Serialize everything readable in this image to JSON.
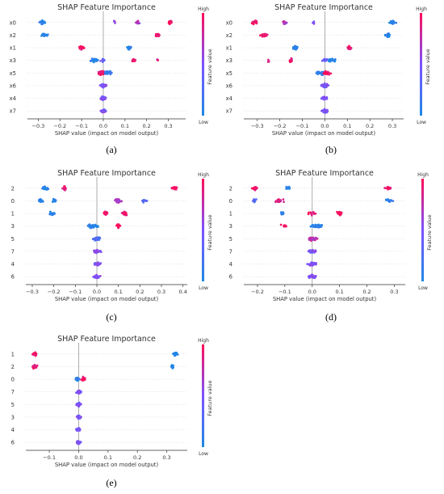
{
  "chart_data": [
    {
      "type": "scatter",
      "subtype": "shap-beeswarm",
      "panel_label": "(a)",
      "title": "SHAP Feature Importance",
      "xlabel": "SHAP value (impact on model output)",
      "colorbar_label": "Feature value",
      "colorbar_high": "High",
      "colorbar_low": "Low",
      "xlim": [
        -0.35,
        0.38
      ],
      "xticks": [
        -0.3,
        -0.2,
        -0.1,
        0.0,
        0.1,
        0.2,
        0.3
      ],
      "xtick_labels": [
        "−0.3",
        "−0.2",
        "−0.1",
        "0.0",
        "0.1",
        "0.2",
        "0.3"
      ],
      "features": [
        {
          "name": "x0",
          "clusters": [
            {
              "x": -0.28,
              "spread": 0.012,
              "n": 26,
              "value": 0.05
            },
            {
              "x": 0.05,
              "spread": 0.006,
              "n": 4,
              "value": 0.55
            },
            {
              "x": 0.16,
              "spread": 0.01,
              "n": 12,
              "value": 0.7
            },
            {
              "x": 0.31,
              "spread": 0.008,
              "n": 14,
              "value": 0.95
            }
          ]
        },
        {
          "name": "x2",
          "clusters": [
            {
              "x": -0.27,
              "spread": 0.012,
              "n": 24,
              "value": 0.05
            },
            {
              "x": 0.25,
              "spread": 0.01,
              "n": 20,
              "value": 0.95
            }
          ]
        },
        {
          "name": "x1",
          "clusters": [
            {
              "x": -0.1,
              "spread": 0.01,
              "n": 24,
              "value": 0.95
            },
            {
              "x": 0.12,
              "spread": 0.009,
              "n": 24,
              "value": 0.05
            }
          ]
        },
        {
          "name": "x3",
          "clusters": [
            {
              "x": -0.04,
              "spread": 0.018,
              "n": 30,
              "value": 0.05
            },
            {
              "x": 0.0,
              "spread": 0.012,
              "n": 14,
              "value": 0.4
            },
            {
              "x": 0.14,
              "spread": 0.01,
              "n": 14,
              "value": 0.95
            },
            {
              "x": 0.25,
              "spread": 0.004,
              "n": 4,
              "value": 0.9
            }
          ]
        },
        {
          "name": "x5",
          "clusters": [
            {
              "x": -0.01,
              "spread": 0.016,
              "n": 30,
              "value": 0.95
            },
            {
              "x": 0.02,
              "spread": 0.02,
              "n": 26,
              "value": 0.1
            }
          ]
        },
        {
          "name": "x6",
          "clusters": [
            {
              "x": 0.0,
              "spread": 0.014,
              "n": 44,
              "value": 0.5
            }
          ]
        },
        {
          "name": "x4",
          "clusters": [
            {
              "x": 0.0,
              "spread": 0.012,
              "n": 40,
              "value": 0.5
            }
          ]
        },
        {
          "name": "x7",
          "clusters": [
            {
              "x": 0.0,
              "spread": 0.012,
              "n": 40,
              "value": 0.5
            }
          ]
        }
      ]
    },
    {
      "type": "scatter",
      "subtype": "shap-beeswarm",
      "panel_label": "(b)",
      "title": "SHAP Feature Importance",
      "xlabel": "SHAP value (impact on model output)",
      "colorbar_label": "Feature value",
      "colorbar_high": "High",
      "colorbar_low": "Low",
      "xlim": [
        -0.36,
        0.35
      ],
      "xticks": [
        -0.3,
        -0.2,
        -0.1,
        0.0,
        0.1,
        0.2,
        0.3
      ],
      "xtick_labels": [
        "−0.3",
        "−0.2",
        "−0.1",
        "0.0",
        "0.1",
        "0.2",
        "0.3"
      ],
      "features": [
        {
          "name": "x0",
          "clusters": [
            {
              "x": -0.31,
              "spread": 0.012,
              "n": 20,
              "value": 0.95
            },
            {
              "x": -0.18,
              "spread": 0.01,
              "n": 12,
              "value": 0.7
            },
            {
              "x": -0.05,
              "spread": 0.006,
              "n": 4,
              "value": 0.5
            },
            {
              "x": 0.3,
              "spread": 0.012,
              "n": 28,
              "value": 0.05
            }
          ]
        },
        {
          "name": "x2",
          "clusters": [
            {
              "x": -0.27,
              "spread": 0.012,
              "n": 24,
              "value": 0.95
            },
            {
              "x": 0.28,
              "spread": 0.012,
              "n": 24,
              "value": 0.05
            }
          ]
        },
        {
          "name": "x1",
          "clusters": [
            {
              "x": -0.13,
              "spread": 0.01,
              "n": 24,
              "value": 0.05
            },
            {
              "x": 0.11,
              "spread": 0.009,
              "n": 24,
              "value": 0.95
            }
          ]
        },
        {
          "name": "x3",
          "clusters": [
            {
              "x": -0.25,
              "spread": 0.004,
              "n": 4,
              "value": 0.9
            },
            {
              "x": -0.15,
              "spread": 0.01,
              "n": 14,
              "value": 0.95
            },
            {
              "x": 0.0,
              "spread": 0.012,
              "n": 14,
              "value": 0.4
            },
            {
              "x": 0.03,
              "spread": 0.016,
              "n": 30,
              "value": 0.05
            }
          ]
        },
        {
          "name": "x5",
          "clusters": [
            {
              "x": -0.02,
              "spread": 0.02,
              "n": 26,
              "value": 0.1
            },
            {
              "x": 0.01,
              "spread": 0.016,
              "n": 30,
              "value": 0.95
            }
          ]
        },
        {
          "name": "x6",
          "clusters": [
            {
              "x": 0.0,
              "spread": 0.014,
              "n": 44,
              "value": 0.5
            }
          ]
        },
        {
          "name": "x4",
          "clusters": [
            {
              "x": 0.0,
              "spread": 0.012,
              "n": 40,
              "value": 0.5
            }
          ]
        },
        {
          "name": "x7",
          "clusters": [
            {
              "x": 0.0,
              "spread": 0.012,
              "n": 40,
              "value": 0.5
            }
          ]
        }
      ]
    },
    {
      "type": "scatter",
      "subtype": "shap-beeswarm",
      "panel_label": "(c)",
      "title": "SHAP Feature Importance",
      "xlabel": "SHAP value (impact on model output)",
      "colorbar_label": "Feature value",
      "colorbar_high": "High",
      "colorbar_low": "Low",
      "xlim": [
        -0.33,
        0.42
      ],
      "xticks": [
        -0.3,
        -0.2,
        -0.1,
        0.0,
        0.1,
        0.2,
        0.3,
        0.4
      ],
      "xtick_labels": [
        "−0.3",
        "−0.2",
        "−0.1",
        "0.0",
        "0.1",
        "0.2",
        "0.3",
        "0.4"
      ],
      "features": [
        {
          "name": "2",
          "clusters": [
            {
              "x": -0.24,
              "spread": 0.012,
              "n": 20,
              "value": 0.05
            },
            {
              "x": -0.15,
              "spread": 0.012,
              "n": 18,
              "value": 0.95
            },
            {
              "x": 0.36,
              "spread": 0.01,
              "n": 20,
              "value": 0.95
            }
          ]
        },
        {
          "name": "0",
          "clusters": [
            {
              "x": -0.26,
              "spread": 0.012,
              "n": 14,
              "value": 0.1
            },
            {
              "x": -0.2,
              "spread": 0.01,
              "n": 8,
              "value": 0.05
            },
            {
              "x": 0.1,
              "spread": 0.015,
              "n": 26,
              "value": 0.7
            },
            {
              "x": 0.22,
              "spread": 0.01,
              "n": 14,
              "value": 0.3
            }
          ]
        },
        {
          "name": "1",
          "clusters": [
            {
              "x": -0.21,
              "spread": 0.012,
              "n": 22,
              "value": 0.05
            },
            {
              "x": 0.04,
              "spread": 0.008,
              "n": 16,
              "value": 0.95
            },
            {
              "x": 0.13,
              "spread": 0.012,
              "n": 22,
              "value": 0.9
            }
          ]
        },
        {
          "name": "3",
          "clusters": [
            {
              "x": -0.02,
              "spread": 0.022,
              "n": 40,
              "value": 0.05
            },
            {
              "x": 0.1,
              "spread": 0.01,
              "n": 12,
              "value": 0.95
            }
          ]
        },
        {
          "name": "5",
          "clusters": [
            {
              "x": 0.0,
              "spread": 0.016,
              "n": 40,
              "value": 0.25
            }
          ]
        },
        {
          "name": "7",
          "clusters": [
            {
              "x": 0.0,
              "spread": 0.015,
              "n": 40,
              "value": 0.5
            }
          ]
        },
        {
          "name": "4",
          "clusters": [
            {
              "x": 0.0,
              "spread": 0.014,
              "n": 40,
              "value": 0.5
            }
          ]
        },
        {
          "name": "6",
          "clusters": [
            {
              "x": 0.0,
              "spread": 0.014,
              "n": 40,
              "value": 0.5
            }
          ]
        }
      ]
    },
    {
      "type": "scatter",
      "subtype": "shap-beeswarm",
      "panel_label": "(d)",
      "title": "SHAP Feature Importance",
      "xlabel": "SHAP value (impact on model output)",
      "colorbar_label": "Feature value",
      "colorbar_high": "High",
      "colorbar_low": "Low",
      "xlim": [
        -0.25,
        0.34
      ],
      "xticks": [
        -0.2,
        -0.1,
        0.0,
        0.1,
        0.2,
        0.3
      ],
      "xtick_labels": [
        "−0.2",
        "−0.1",
        "0.0",
        "0.1",
        "0.2",
        "0.3"
      ],
      "features": [
        {
          "name": "2",
          "clusters": [
            {
              "x": -0.21,
              "spread": 0.01,
              "n": 20,
              "value": 0.95
            },
            {
              "x": -0.09,
              "spread": 0.008,
              "n": 14,
              "value": 0.05
            },
            {
              "x": 0.28,
              "spread": 0.012,
              "n": 20,
              "value": 0.95
            }
          ]
        },
        {
          "name": "0",
          "clusters": [
            {
              "x": -0.21,
              "spread": 0.008,
              "n": 10,
              "value": 0.3
            },
            {
              "x": -0.12,
              "spread": 0.014,
              "n": 26,
              "value": 0.85
            },
            {
              "x": 0.28,
              "spread": 0.014,
              "n": 20,
              "value": 0.1
            }
          ]
        },
        {
          "name": "1",
          "clusters": [
            {
              "x": -0.11,
              "spread": 0.008,
              "n": 16,
              "value": 0.05
            },
            {
              "x": 0.0,
              "spread": 0.012,
              "n": 16,
              "value": 0.95
            },
            {
              "x": 0.1,
              "spread": 0.01,
              "n": 22,
              "value": 0.95
            }
          ]
        },
        {
          "name": "3",
          "clusters": [
            {
              "x": -0.1,
              "spread": 0.01,
              "n": 12,
              "value": 0.95
            },
            {
              "x": 0.02,
              "spread": 0.022,
              "n": 40,
              "value": 0.05
            }
          ]
        },
        {
          "name": "5",
          "clusters": [
            {
              "x": 0.0,
              "spread": 0.016,
              "n": 40,
              "value": 0.75
            }
          ]
        },
        {
          "name": "7",
          "clusters": [
            {
              "x": 0.0,
              "spread": 0.015,
              "n": 40,
              "value": 0.5
            }
          ]
        },
        {
          "name": "4",
          "clusters": [
            {
              "x": 0.0,
              "spread": 0.014,
              "n": 40,
              "value": 0.5
            }
          ]
        },
        {
          "name": "6",
          "clusters": [
            {
              "x": 0.0,
              "spread": 0.014,
              "n": 40,
              "value": 0.5
            }
          ]
        }
      ]
    },
    {
      "type": "scatter",
      "subtype": "shap-beeswarm",
      "panel_label": "(e)",
      "title": "SHAP Feature Importance",
      "xlabel": "SHAP value (impact on model output)",
      "colorbar_label": "Feature value",
      "colorbar_high": "High",
      "colorbar_low": "Low",
      "xlim": [
        -0.18,
        0.37
      ],
      "xticks": [
        -0.1,
        0.0,
        0.1,
        0.2,
        0.3
      ],
      "xtick_labels": [
        "−0.1",
        "0.0",
        "0.1",
        "0.2",
        "0.3"
      ],
      "features": [
        {
          "name": "1",
          "clusters": [
            {
              "x": -0.15,
              "spread": 0.008,
              "n": 26,
              "value": 0.95
            },
            {
              "x": 0.33,
              "spread": 0.008,
              "n": 18,
              "value": 0.05
            }
          ]
        },
        {
          "name": "2",
          "clusters": [
            {
              "x": -0.15,
              "spread": 0.008,
              "n": 24,
              "value": 0.95
            },
            {
              "x": 0.32,
              "spread": 0.007,
              "n": 14,
              "value": 0.05
            }
          ]
        },
        {
          "name": "0",
          "clusters": [
            {
              "x": -0.005,
              "spread": 0.008,
              "n": 26,
              "value": 0.05
            },
            {
              "x": 0.015,
              "spread": 0.008,
              "n": 18,
              "value": 0.95
            }
          ]
        },
        {
          "name": "7",
          "clusters": [
            {
              "x": 0.0,
              "spread": 0.008,
              "n": 34,
              "value": 0.5
            }
          ]
        },
        {
          "name": "5",
          "clusters": [
            {
              "x": 0.0,
              "spread": 0.008,
              "n": 34,
              "value": 0.5
            }
          ]
        },
        {
          "name": "3",
          "clusters": [
            {
              "x": 0.0,
              "spread": 0.007,
              "n": 32,
              "value": 0.5
            }
          ]
        },
        {
          "name": "4",
          "clusters": [
            {
              "x": 0.0,
              "spread": 0.007,
              "n": 32,
              "value": 0.5
            }
          ]
        },
        {
          "name": "6",
          "clusters": [
            {
              "x": 0.0,
              "spread": 0.007,
              "n": 32,
              "value": 0.5
            }
          ]
        }
      ]
    }
  ],
  "colors": {
    "low": "#1e88e5",
    "high": "#ff0d57",
    "zero_line": "#999999"
  }
}
